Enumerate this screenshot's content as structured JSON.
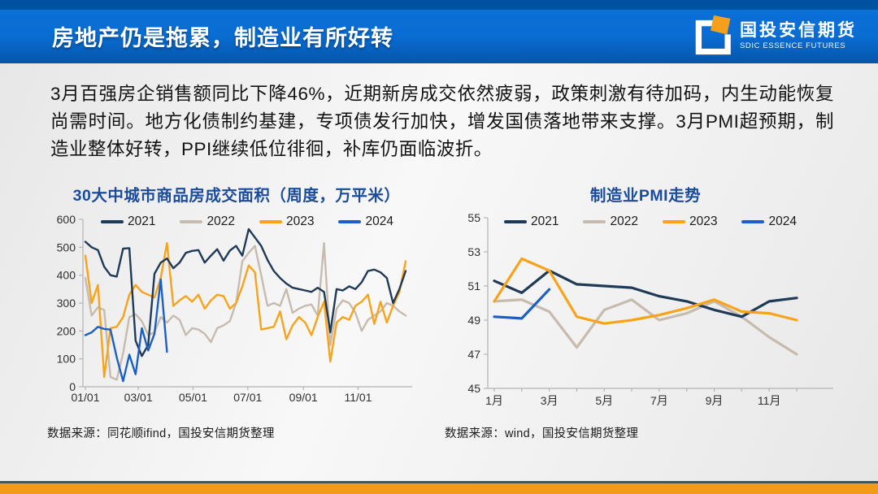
{
  "header": {
    "title": "房地产仍是拖累，制造业有所好转",
    "logo_cn": "国投安信期货",
    "logo_en": "SDIC ESSENCE FUTURES"
  },
  "body_paragraph": "3月百强房企销售额同比下降46%，近期新房成交依然疲弱，政策刺激有待加码，内生动能恢复尚需时间。地方化债制约基建，专项债发行加快，增发国债落地带来支撑。3月PMI超预期，制造业整体好转，PPI继续低位徘徊，补库仍面临波折。",
  "sources": {
    "left": "数据来源：同花顺ifind，国投安信期货整理",
    "right": "数据来源：wind，国投安信期货整理"
  },
  "colors": {
    "header_blue": "#0a6fd6",
    "header_dark_blue": "#0051a0",
    "chart_title_blue": "#1b4b9b",
    "footer_orange": "#f29b1b",
    "series_2021": "#1f3a56",
    "series_2022": "#c6bbae",
    "series_2023": "#f8a31a",
    "series_2024": "#1c5fc4"
  },
  "chart_data": [
    {
      "type": "line",
      "title": "30大中城市商品房成交面积（周度，万平米）",
      "x_unit": "weekly (52 weeks, dates mm/dd)",
      "x_ticks": [
        "01/01",
        "03/01",
        "05/01",
        "07/01",
        "09/01",
        "11/01"
      ],
      "ylim": [
        0,
        600
      ],
      "y_ticks": [
        0,
        100,
        200,
        300,
        400,
        500,
        600
      ],
      "grid": false,
      "legend_position": "top",
      "series": [
        {
          "name": "2021",
          "color": "#1f3a56",
          "values": [
            520,
            500,
            490,
            430,
            400,
            395,
            495,
            497,
            165,
            110,
            150,
            405,
            445,
            460,
            425,
            445,
            480,
            487,
            490,
            445,
            470,
            493,
            452,
            488,
            505,
            470,
            565,
            535,
            505,
            455,
            415,
            390,
            370,
            355,
            350,
            345,
            340,
            355,
            340,
            195,
            350,
            345,
            360,
            350,
            375,
            415,
            420,
            410,
            390,
            300,
            350,
            415
          ]
        },
        {
          "name": "2022",
          "color": "#c6bbae",
          "values": [
            390,
            255,
            285,
            275,
            35,
            25,
            120,
            250,
            260,
            235,
            185,
            195,
            250,
            230,
            255,
            240,
            185,
            210,
            205,
            190,
            160,
            210,
            220,
            235,
            300,
            450,
            480,
            505,
            400,
            290,
            300,
            290,
            350,
            265,
            280,
            290,
            295,
            255,
            515,
            150,
            280,
            310,
            300,
            265,
            200,
            240,
            255,
            270,
            300,
            290,
            270,
            255
          ]
        },
        {
          "name": "2023",
          "color": "#f8a31a",
          "values": [
            470,
            300,
            365,
            35,
            210,
            215,
            250,
            330,
            365,
            340,
            330,
            320,
            390,
            515,
            290,
            310,
            325,
            305,
            330,
            280,
            310,
            330,
            325,
            280,
            300,
            360,
            435,
            410,
            205,
            210,
            215,
            270,
            170,
            220,
            250,
            230,
            185,
            250,
            305,
            90,
            230,
            250,
            240,
            290,
            305,
            330,
            225,
            305,
            230,
            290,
            340,
            450
          ]
        },
        {
          "name": "2024",
          "color": "#1c5fc4",
          "values": [
            185,
            195,
            215,
            207,
            205,
            105,
            20,
            115,
            45,
            210,
            130,
            190,
            385,
            125
          ]
        }
      ]
    },
    {
      "type": "line",
      "title": "制造业PMI走势",
      "x_unit": "monthly (12 months)",
      "x_ticks": [
        "1月",
        "3月",
        "5月",
        "7月",
        "9月",
        "11月"
      ],
      "ylim": [
        45,
        55
      ],
      "y_ticks": [
        45,
        47,
        49,
        51,
        53,
        55
      ],
      "grid": false,
      "legend_position": "top",
      "series": [
        {
          "name": "2021",
          "color": "#1f3a56",
          "values": [
            51.3,
            50.6,
            51.9,
            51.1,
            51.0,
            50.9,
            50.4,
            50.1,
            49.6,
            49.2,
            50.1,
            50.3
          ]
        },
        {
          "name": "2022",
          "color": "#c6bbae",
          "values": [
            50.1,
            50.2,
            49.5,
            47.4,
            49.6,
            50.2,
            49.0,
            49.4,
            50.1,
            49.2,
            48.0,
            47.0
          ]
        },
        {
          "name": "2023",
          "color": "#f8a31a",
          "values": [
            50.1,
            52.6,
            51.9,
            49.2,
            48.8,
            49.0,
            49.3,
            49.7,
            50.2,
            49.5,
            49.4,
            49.0
          ]
        },
        {
          "name": "2024",
          "color": "#1c5fc4",
          "values": [
            49.2,
            49.1,
            50.8
          ]
        }
      ]
    }
  ]
}
